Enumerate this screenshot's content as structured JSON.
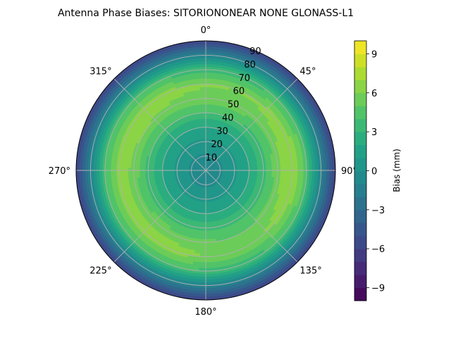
{
  "chart_data": {
    "type": "polar-contour",
    "title": "Antenna Phase Biases: SITORIONONEAR   NONE GLONASS-L1",
    "azimuth_labels": [
      {
        "deg": 0,
        "label": "0°"
      },
      {
        "deg": 45,
        "label": "45°"
      },
      {
        "deg": 90,
        "label": "90°"
      },
      {
        "deg": 135,
        "label": "135°"
      },
      {
        "deg": 180,
        "label": "180°"
      },
      {
        "deg": 225,
        "label": "225°"
      },
      {
        "deg": 270,
        "label": "270°"
      },
      {
        "deg": 315,
        "label": "315°"
      }
    ],
    "radial_ticks": [
      10,
      20,
      30,
      40,
      50,
      60,
      70,
      80,
      90
    ],
    "radial_label_angle_deg": 22.5,
    "rlim": [
      0,
      90
    ],
    "grid": true,
    "colorbar": {
      "label": "Bias (mm)",
      "min": -10,
      "max": 10,
      "levels": 20,
      "ticks": [
        -9,
        -6,
        -3,
        0,
        3,
        6,
        9
      ],
      "tick_labels": [
        "−9",
        "−6",
        "−3",
        "0",
        "3",
        "6",
        "9"
      ],
      "colormap": "viridis"
    },
    "bias_profile": [
      {
        "zenith": 0,
        "bias": -0.6
      },
      {
        "zenith": 10,
        "bias": -0.2
      },
      {
        "zenith": 20,
        "bias": 0.6
      },
      {
        "zenith": 30,
        "bias": 2.0
      },
      {
        "zenith": 40,
        "bias": 3.6
      },
      {
        "zenith": 50,
        "bias": 4.9
      },
      {
        "zenith": 60,
        "bias": 5.6
      },
      {
        "zenith": 70,
        "bias": 3.6
      },
      {
        "zenith": 80,
        "bias": -1.0
      },
      {
        "zenith": 90,
        "bias": -5.5
      }
    ],
    "bias_peaks": [
      {
        "azimuth": 90,
        "zenith": 60,
        "bias": 7.0
      },
      {
        "azimuth": 300,
        "zenith": 56,
        "bias": 6.5
      },
      {
        "azimuth": 217,
        "zenith": 57,
        "bias": 6.3
      },
      {
        "azimuth": 10,
        "zenith": 50,
        "bias": 5.5
      }
    ]
  }
}
